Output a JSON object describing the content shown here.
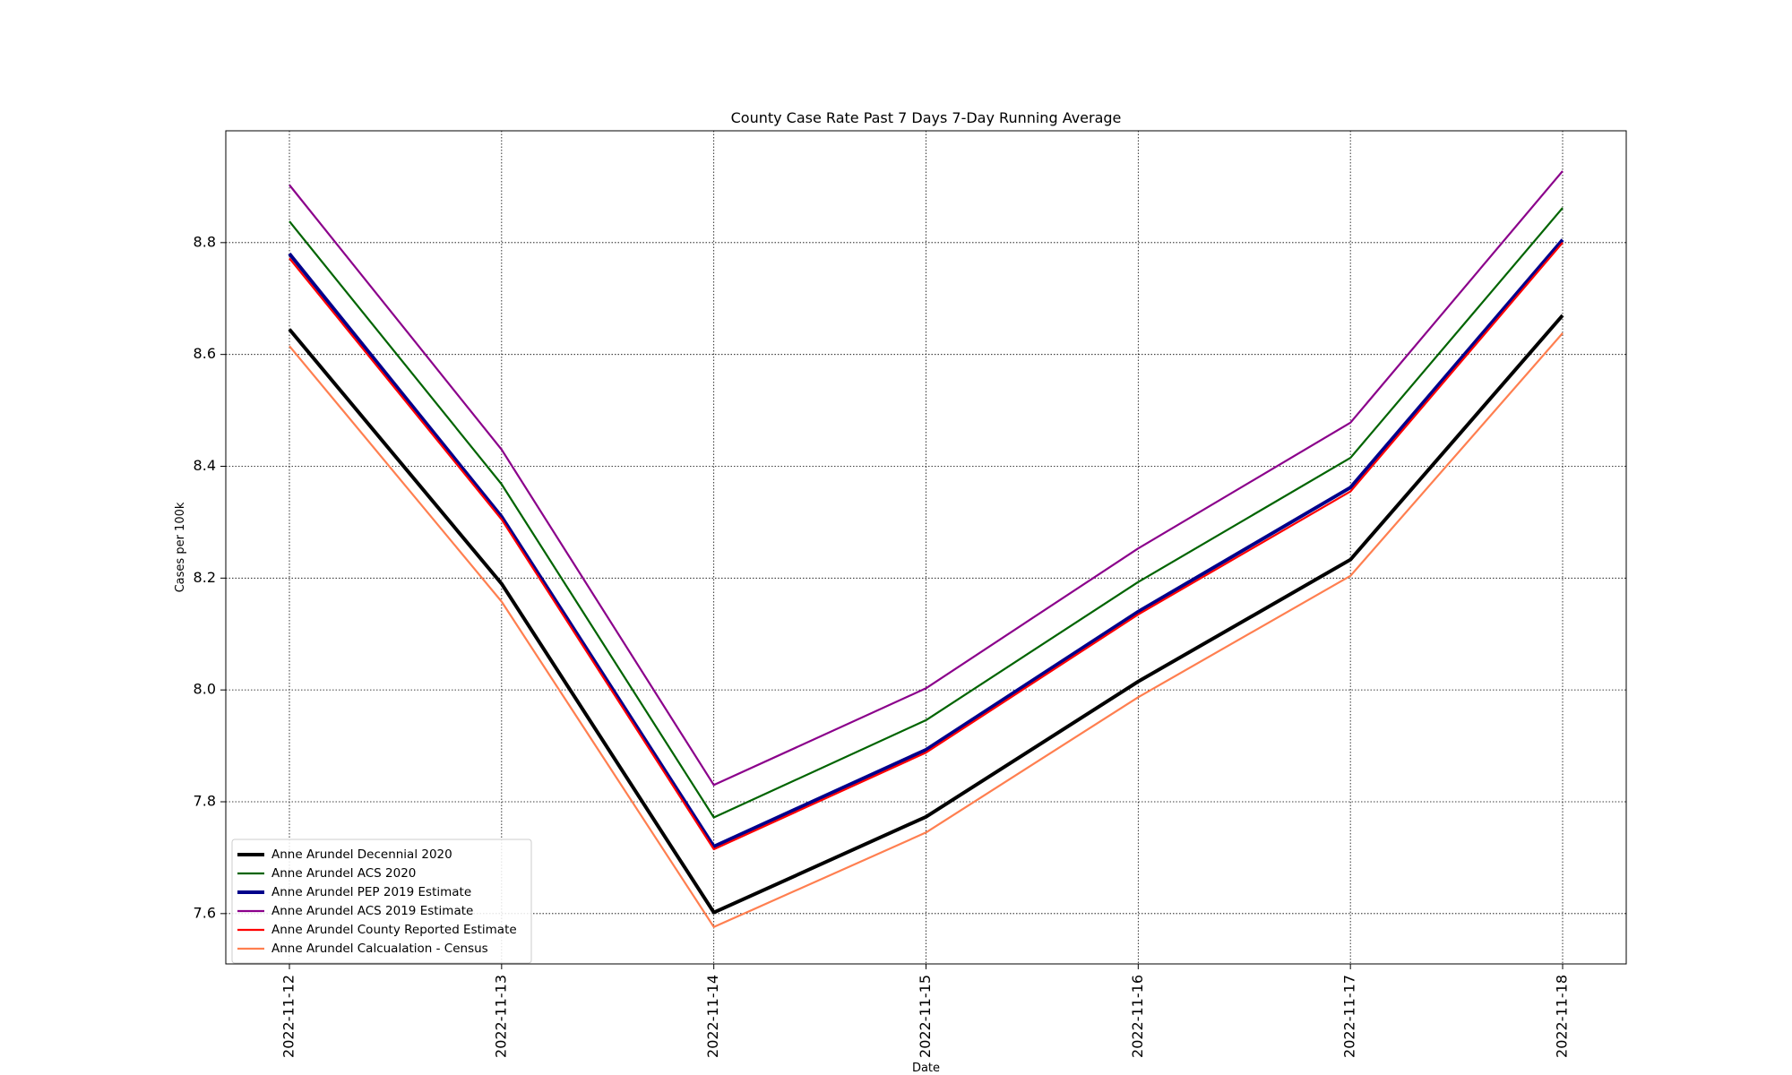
{
  "chart_data": {
    "type": "line",
    "title": "County Case Rate  Past 7 Days 7-Day Running Average",
    "xlabel": "Date",
    "ylabel": "Cases per 100k",
    "x": [
      "2022-11-12",
      "2022-11-13",
      "2022-11-14",
      "2022-11-15",
      "2022-11-16",
      "2022-11-17",
      "2022-11-18"
    ],
    "yticks": [
      "7.6",
      "7.8",
      "8.0",
      "8.2",
      "8.4",
      "8.6",
      "8.8"
    ],
    "ylim": [
      7.51,
      9.0
    ],
    "grid": true,
    "legend_position": "lower-left",
    "series": [
      {
        "name": "Anne Arundel Decennial 2020",
        "color": "#000000",
        "values": [
          8.645,
          8.19,
          7.602,
          7.773,
          8.015,
          8.233,
          8.67
        ]
      },
      {
        "name": "Anne Arundel ACS 2020",
        "color": "#006400",
        "values": [
          8.838,
          8.368,
          7.772,
          7.946,
          8.193,
          8.415,
          8.862
        ]
      },
      {
        "name": "Anne Arundel PEP 2019 Estimate",
        "color": "#00008b",
        "values": [
          8.78,
          8.31,
          7.72,
          7.893,
          8.14,
          8.362,
          8.805
        ]
      },
      {
        "name": "Anne Arundel ACS 2019 Estimate",
        "color": "#8b008b",
        "values": [
          8.903,
          8.43,
          7.83,
          8.003,
          8.253,
          8.478,
          8.928
        ]
      },
      {
        "name": "Anne Arundel County Reported Estimate",
        "color": "#ff0000",
        "values": [
          8.772,
          8.305,
          7.715,
          7.888,
          8.135,
          8.355,
          8.8
        ]
      },
      {
        "name": "Anne Arundel Calcualation - Census",
        "color": "#ff7f50",
        "values": [
          8.615,
          8.158,
          7.576,
          7.745,
          7.987,
          8.204,
          8.638
        ]
      }
    ]
  }
}
